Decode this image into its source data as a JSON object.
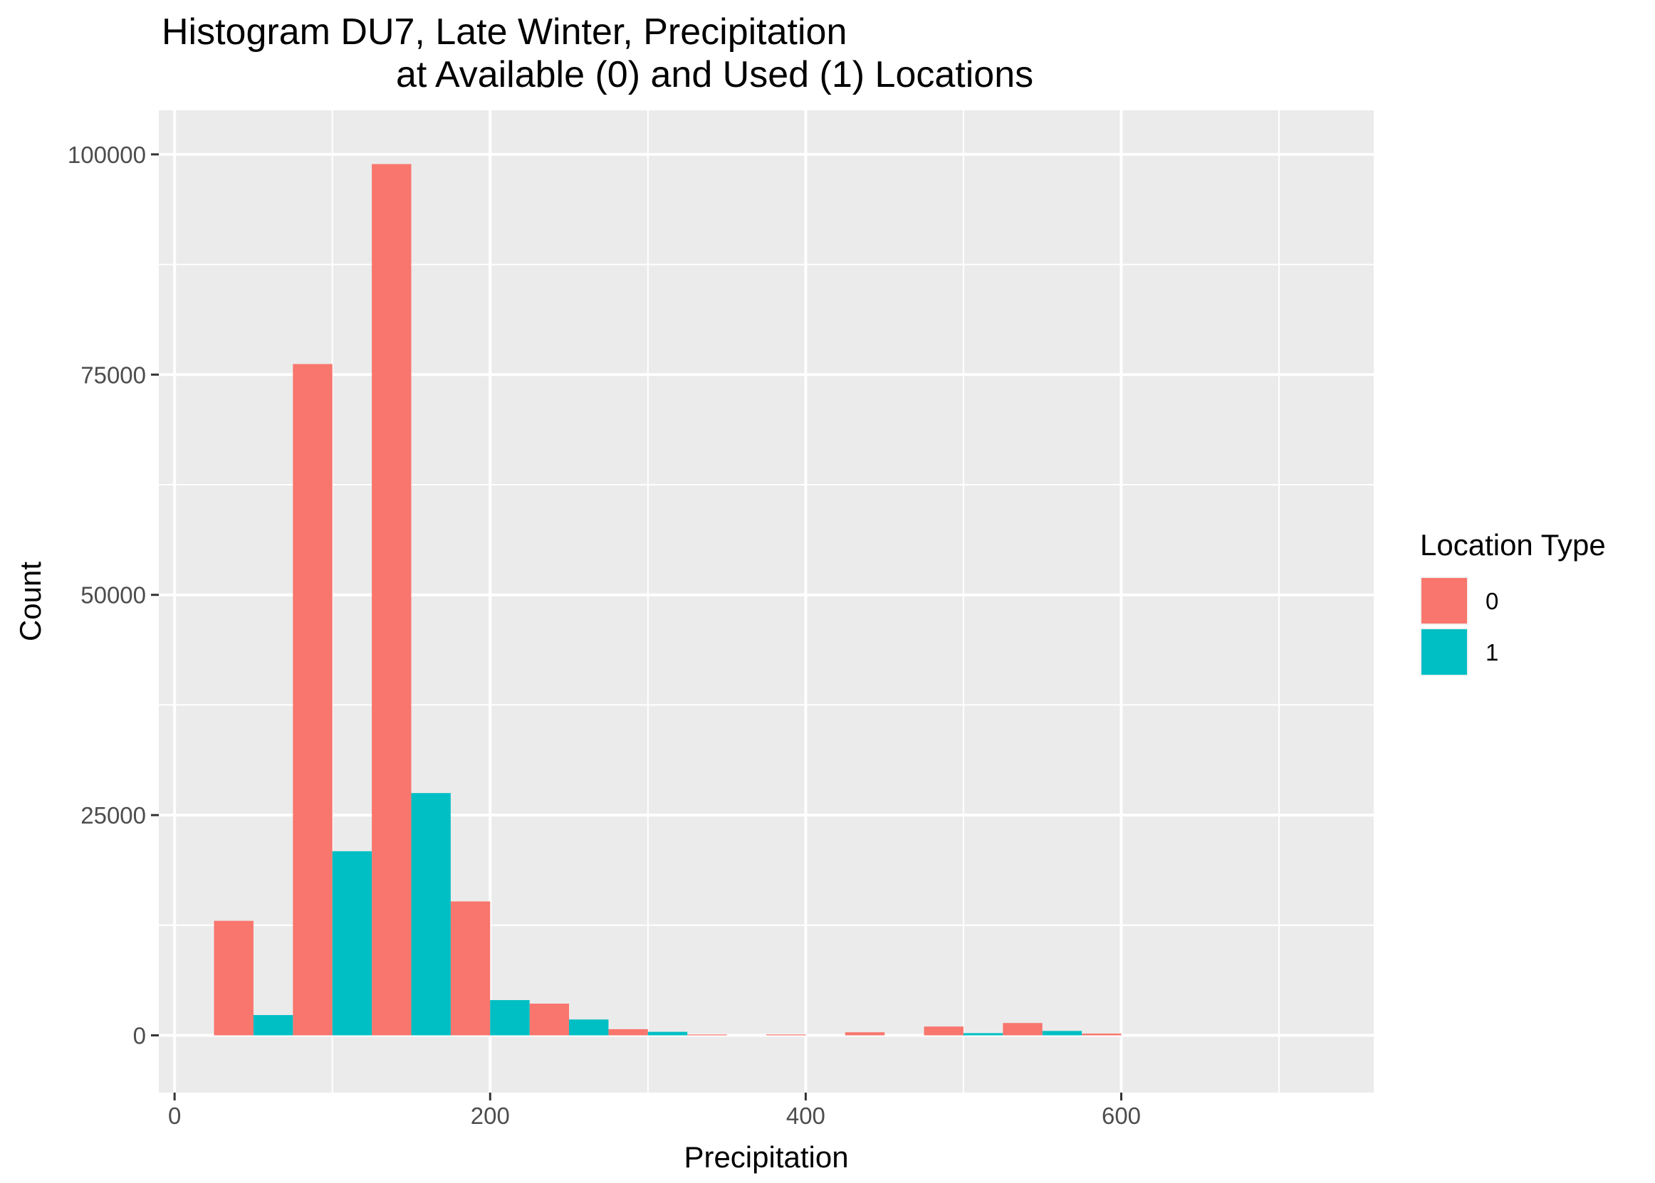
{
  "chart_data": {
    "type": "bar",
    "title": "Histogram DU7, Late Winter, Precipitation",
    "subtitle": "at Available (0) and Used (1) Locations",
    "xlabel": "Precipitation",
    "ylabel": "Count",
    "xlim": [
      -10,
      760
    ],
    "ylim": [
      -6500,
      105000
    ],
    "x_ticks": [
      0,
      200,
      400,
      600
    ],
    "x_tick_labels": [
      "0",
      "200",
      "400",
      "600"
    ],
    "y_ticks": [
      0,
      25000,
      50000,
      75000,
      100000
    ],
    "y_tick_labels": [
      "0",
      "25000",
      "50000",
      "75000",
      "100000"
    ],
    "x_minor_ticks": [
      100,
      300,
      500,
      700
    ],
    "y_minor_ticks": [
      12500,
      37500,
      62500,
      87500
    ],
    "grid": true,
    "position": "dodge",
    "legend": {
      "title": "Location Type",
      "placement": "right"
    },
    "bin_edges": [
      25,
      75,
      125,
      175,
      225,
      275,
      325,
      375,
      425,
      475,
      525,
      575,
      625,
      675,
      725
    ],
    "series": [
      {
        "name": "0",
        "color": "#F8766D",
        "values": [
          13000,
          76200,
          98900,
          15200,
          3600,
          700,
          100,
          100,
          350,
          1000,
          1400,
          200,
          0,
          0
        ]
      },
      {
        "name": "1",
        "color": "#00BFC4",
        "values": [
          2300,
          20900,
          27500,
          4000,
          1800,
          400,
          0,
          0,
          0,
          250,
          500,
          0,
          0,
          0
        ]
      }
    ]
  }
}
